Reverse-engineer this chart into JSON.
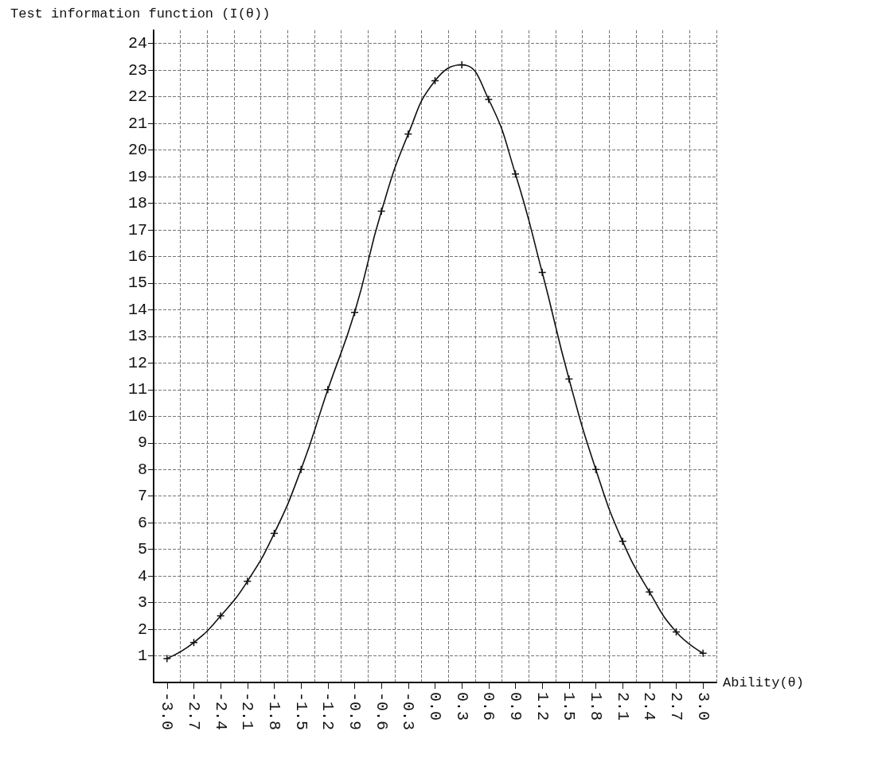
{
  "chart_data": {
    "type": "line",
    "ylabel": "Test information function (I(θ))",
    "xlabel": "Ability(θ)",
    "categories": [
      "-3.0",
      "-2.7",
      "-2.4",
      "-2.1",
      "-1.8",
      "-1.5",
      "-1.2",
      "-0.9",
      "-0.6",
      "-0.3",
      "0.0",
      "0.3",
      "0.6",
      "0.9",
      "1.2",
      "1.5",
      "1.8",
      "2.1",
      "2.4",
      "2.7",
      "3.0"
    ],
    "series": [
      {
        "color": "#111111",
        "values": [
          0.9,
          1.5,
          2.5,
          3.8,
          5.6,
          8.0,
          11.0,
          13.9,
          17.7,
          20.6,
          22.6,
          23.2,
          21.9,
          19.1,
          15.4,
          11.4,
          8.0,
          5.3,
          3.4,
          1.9,
          1.1
        ]
      }
    ],
    "ylim": [
      0,
      24.5
    ],
    "yticks": [
      1,
      2,
      3,
      4,
      5,
      6,
      7,
      8,
      9,
      10,
      11,
      12,
      13,
      14,
      15,
      16,
      17,
      18,
      19,
      20,
      21,
      22,
      23,
      24
    ],
    "grid": true,
    "marker": "cross",
    "line_style": "solid"
  }
}
